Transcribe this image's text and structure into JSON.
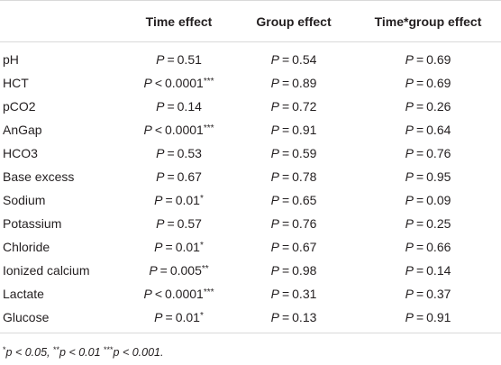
{
  "table": {
    "headers": [
      "",
      "Time effect",
      "Group effect",
      "Time*group effect"
    ],
    "rows": [
      {
        "label": "pH",
        "time": {
          "op": "=",
          "num": "0.51",
          "stars": ""
        },
        "group": {
          "op": "=",
          "num": "0.54",
          "stars": ""
        },
        "interaction": {
          "op": "=",
          "num": "0.69",
          "stars": ""
        }
      },
      {
        "label": "HCT",
        "time": {
          "op": "<",
          "num": "0.0001",
          "stars": "***"
        },
        "group": {
          "op": "=",
          "num": "0.89",
          "stars": ""
        },
        "interaction": {
          "op": "=",
          "num": "0.69",
          "stars": ""
        }
      },
      {
        "label": "pCO2",
        "time": {
          "op": "=",
          "num": "0.14",
          "stars": ""
        },
        "group": {
          "op": "=",
          "num": "0.72",
          "stars": ""
        },
        "interaction": {
          "op": "=",
          "num": "0.26",
          "stars": ""
        }
      },
      {
        "label": "AnGap",
        "time": {
          "op": "<",
          "num": "0.0001",
          "stars": "***"
        },
        "group": {
          "op": "=",
          "num": "0.91",
          "stars": ""
        },
        "interaction": {
          "op": "=",
          "num": "0.64",
          "stars": ""
        }
      },
      {
        "label": "HCO3",
        "time": {
          "op": "=",
          "num": "0.53",
          "stars": ""
        },
        "group": {
          "op": "=",
          "num": "0.59",
          "stars": ""
        },
        "interaction": {
          "op": "=",
          "num": "0.76",
          "stars": ""
        }
      },
      {
        "label": "Base excess",
        "time": {
          "op": "=",
          "num": "0.67",
          "stars": ""
        },
        "group": {
          "op": "=",
          "num": "0.78",
          "stars": ""
        },
        "interaction": {
          "op": "=",
          "num": "0.95",
          "stars": ""
        }
      },
      {
        "label": "Sodium",
        "time": {
          "op": "=",
          "num": "0.01",
          "stars": "*"
        },
        "group": {
          "op": "=",
          "num": "0.65",
          "stars": ""
        },
        "interaction": {
          "op": "=",
          "num": "0.09",
          "stars": ""
        }
      },
      {
        "label": "Potassium",
        "time": {
          "op": "=",
          "num": "0.57",
          "stars": ""
        },
        "group": {
          "op": "=",
          "num": "0.76",
          "stars": ""
        },
        "interaction": {
          "op": "=",
          "num": "0.25",
          "stars": ""
        }
      },
      {
        "label": "Chloride",
        "time": {
          "op": "=",
          "num": "0.01",
          "stars": "*"
        },
        "group": {
          "op": "=",
          "num": "0.67",
          "stars": ""
        },
        "interaction": {
          "op": "=",
          "num": "0.66",
          "stars": ""
        }
      },
      {
        "label": "Ionized calcium",
        "time": {
          "op": "=",
          "num": "0.005",
          "stars": "**"
        },
        "group": {
          "op": "=",
          "num": "0.98",
          "stars": ""
        },
        "interaction": {
          "op": "=",
          "num": "0.14",
          "stars": ""
        }
      },
      {
        "label": "Lactate",
        "time": {
          "op": "<",
          "num": "0.0001",
          "stars": "***"
        },
        "group": {
          "op": "=",
          "num": "0.31",
          "stars": ""
        },
        "interaction": {
          "op": "=",
          "num": "0.37",
          "stars": ""
        }
      },
      {
        "label": "Glucose",
        "time": {
          "op": "=",
          "num": "0.01",
          "stars": "*"
        },
        "group": {
          "op": "=",
          "num": "0.13",
          "stars": ""
        },
        "interaction": {
          "op": "=",
          "num": "0.91",
          "stars": ""
        }
      }
    ]
  },
  "footnote": {
    "parts": [
      {
        "sup": "*",
        "text": "p < 0.05, "
      },
      {
        "sup": "**",
        "text": "p < 0.01 "
      },
      {
        "sup": "***",
        "text": "p < 0.001."
      }
    ]
  }
}
